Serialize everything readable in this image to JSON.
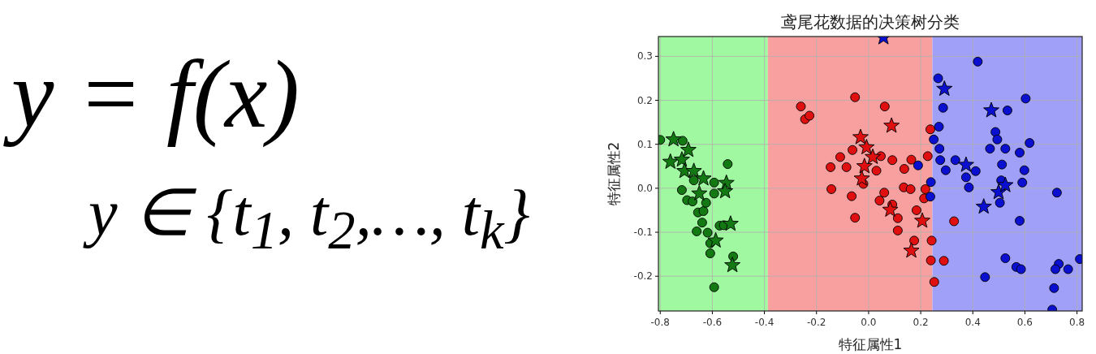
{
  "chart_data": {
    "type": "scatter",
    "title": "鸢尾花数据的决策树分类",
    "xlabel": "特征属性1",
    "ylabel": "特征属性2",
    "annotations": [
      "y = f(x)",
      "y ∈ {t$_{1}$, t$_{2}$,…, t$_{k}$}"
    ],
    "xlim": [
      -0.807,
      0.82
    ],
    "ylim": [
      -0.279,
      0.345
    ],
    "xticks": [
      {
        "value": -0.8,
        "label": "-0.8"
      },
      {
        "value": -0.6,
        "label": "-0.6"
      },
      {
        "value": -0.4,
        "label": "-0.4"
      },
      {
        "value": -0.2,
        "label": "-0.2"
      },
      {
        "value": 0,
        "label": "0.0"
      },
      {
        "value": 0.2,
        "label": "0.2"
      },
      {
        "value": 0.4,
        "label": "0.4"
      },
      {
        "value": 0.6,
        "label": "0.6"
      },
      {
        "value": 0.8,
        "label": "0.8"
      }
    ],
    "yticks": [
      {
        "value": -0.2,
        "label": "-0.2"
      },
      {
        "value": -0.1,
        "label": "-0.1"
      },
      {
        "value": 0,
        "label": "0.0"
      },
      {
        "value": 0.1,
        "label": "0.1"
      },
      {
        "value": 0.2,
        "label": "0.2"
      },
      {
        "value": 0.3,
        "label": "0.3"
      }
    ],
    "grid": true,
    "bands": [
      {
        "axis": "x",
        "from": -0.807,
        "to": -0.387,
        "color": "#a0f8a0"
      },
      {
        "axis": "x",
        "from": -0.387,
        "to": 0.245,
        "color": "#f8a0a0"
      },
      {
        "axis": "x",
        "from": 0.245,
        "to": 0.82,
        "color": "#a0a0f8"
      }
    ],
    "series": [
      {
        "type": "scatter",
        "marker": "circle",
        "color": "#137a13",
        "x": [
          -0.714,
          -0.541,
          -0.8,
          -0.671,
          -0.717,
          -0.697,
          -0.655,
          -0.634,
          -0.639,
          -0.66,
          -0.618,
          -0.608,
          -0.608,
          -0.593,
          -0.593,
          -0.593,
          -0.572,
          -0.556,
          -0.52,
          -0.624,
          -0.676
        ],
        "values": [
          0.108,
          0.055,
          0.11,
          0.018,
          -0.004,
          -0.027,
          -0.055,
          -0.052,
          -0.078,
          -0.098,
          -0.101,
          -0.125,
          -0.148,
          -0.225,
          0.013,
          -0.012,
          -0.085,
          -0.084,
          -0.155,
          -0.033,
          -0.03
        ]
      },
      {
        "type": "scatter",
        "marker": "star",
        "color": "#137a13",
        "x": [
          -0.749,
          -0.692,
          -0.761,
          -0.717,
          -0.707,
          -0.671,
          -0.634,
          -0.546,
          -0.551,
          -0.65,
          -0.53,
          -0.587,
          -0.523
        ],
        "values": [
          0.111,
          0.087,
          0.06,
          0.065,
          0.039,
          0.039,
          0.022,
          0.012,
          -0.007,
          -0.012,
          -0.081,
          -0.119,
          -0.175
        ]
      },
      {
        "type": "scatter",
        "marker": "circle",
        "color": "#e01010",
        "x": [
          -0.26,
          -0.244,
          -0.227,
          -0.052,
          -0.146,
          -0.109,
          -0.085,
          -0.062,
          -0.143,
          -0.065,
          -0.052,
          0.062,
          0.237,
          0.047,
          0.091,
          0.137,
          0.164,
          0.227,
          0.135,
          0.161,
          0.218,
          0.213,
          0.042,
          0.091,
          0.112,
          0.112,
          0.184,
          0.328,
          0.175,
          0.242,
          0.239,
          0.289,
          0.252,
          -0.02,
          0.03,
          0.06
        ],
        "values": [
          0.186,
          0.157,
          0.165,
          0.207,
          0.048,
          0.071,
          0.048,
          0.087,
          -0.002,
          -0.018,
          -0.067,
          0.186,
          0.134,
          0.073,
          0.064,
          0.044,
          0.065,
          0.073,
          0.002,
          -0.002,
          -0.002,
          -0.023,
          -0.028,
          -0.037,
          -0.068,
          -0.096,
          -0.05,
          -0.075,
          -0.119,
          -0.119,
          -0.164,
          -0.165,
          -0.213,
          0.01,
          0.04,
          -0.01
        ]
      },
      {
        "type": "scatter",
        "marker": "star",
        "color": "#e01010",
        "x": [
          0.088,
          -0.031,
          -0.008,
          0.016,
          -0.016,
          -0.026,
          0.083,
          0.206,
          0.164
        ],
        "values": [
          0.142,
          0.116,
          0.093,
          0.071,
          0.05,
          0.022,
          -0.049,
          -0.074,
          -0.142
        ]
      },
      {
        "type": "scatter",
        "marker": "circle",
        "color": "#0a0fd0",
        "x": [
          0.419,
          0.267,
          0.286,
          0.533,
          0.603,
          0.27,
          0.25,
          0.487,
          0.494,
          0.272,
          0.466,
          0.525,
          0.58,
          0.618,
          0.275,
          0.333,
          0.296,
          0.411,
          0.512,
          0.598,
          0.19,
          0.374,
          0.239,
          0.237,
          0.385,
          0.509,
          0.59,
          0.504,
          0.723,
          0.58,
          0.525,
          0.567,
          0.585,
          0.447,
          0.73,
          0.717,
          0.766,
          0.811,
          0.712,
          0.705
        ],
        "values": [
          0.288,
          0.25,
          0.183,
          0.177,
          0.204,
          0.14,
          0.111,
          0.128,
          0.111,
          0.09,
          0.09,
          0.09,
          0.081,
          0.103,
          0.064,
          0.064,
          0.041,
          0.039,
          0.054,
          0.041,
          0.052,
          0.025,
          0.014,
          -0.019,
          0.002,
          0.018,
          0.013,
          -0.033,
          -0.01,
          -0.074,
          -0.159,
          -0.179,
          -0.184,
          -0.202,
          -0.172,
          -0.184,
          -0.184,
          -0.161,
          -0.227,
          -0.276
        ]
      },
      {
        "type": "scatter",
        "marker": "star",
        "color": "#0a0fd0",
        "x": [
          0.057,
          0.291,
          0.471,
          0.374,
          0.499,
          0.525,
          0.442
        ],
        "values": [
          0.343,
          0.226,
          0.177,
          0.053,
          -0.009,
          0.007,
          -0.042
        ]
      }
    ]
  }
}
